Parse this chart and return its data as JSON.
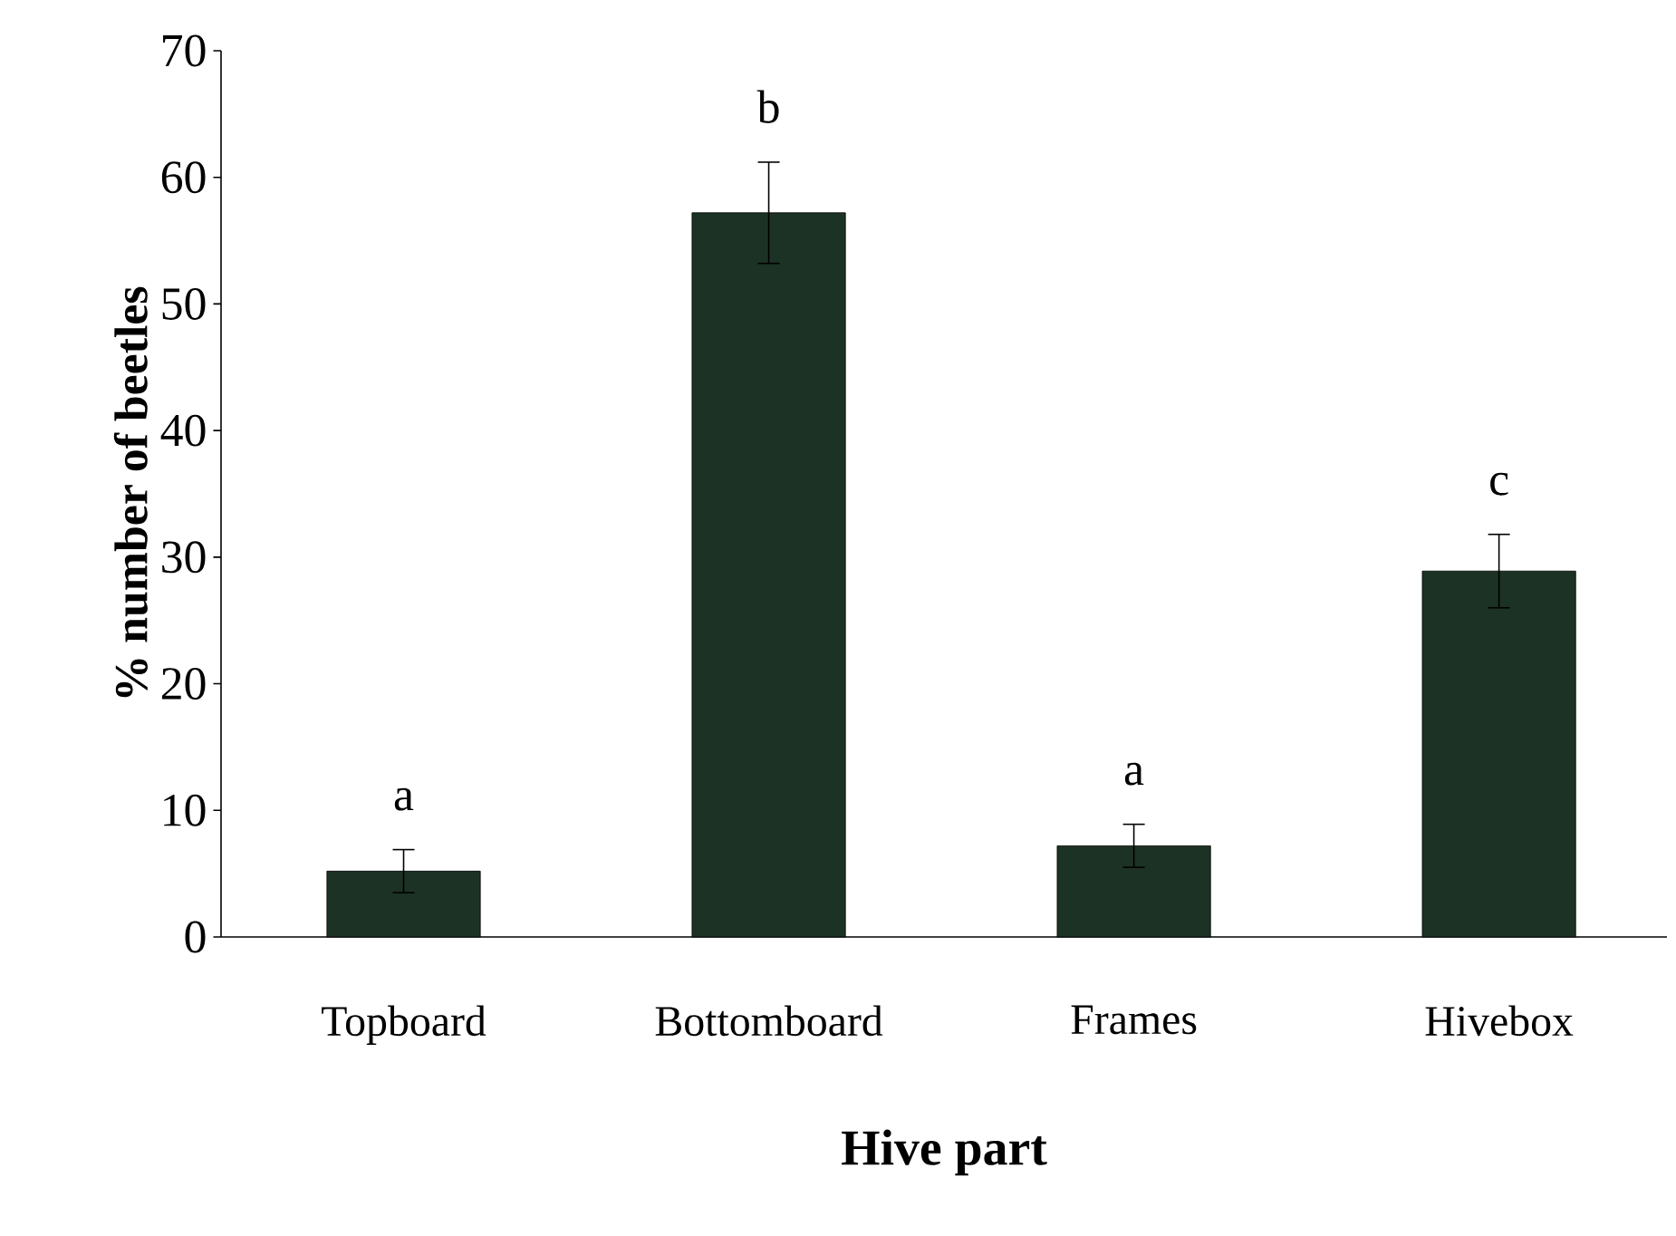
{
  "chart_data": {
    "type": "bar",
    "xlabel": "Hive part",
    "ylabel": "% number of beetles",
    "categories": [
      "Topboard",
      "Bottomboard",
      "Frames",
      "Hivebox"
    ],
    "values": [
      5.2,
      57.2,
      7.2,
      28.9
    ],
    "errors": [
      1.7,
      4.0,
      1.7,
      2.9
    ],
    "color": "#1c3224",
    "ylim": [
      0,
      70
    ],
    "yticks": [
      0,
      10,
      20,
      30,
      40,
      50,
      60,
      70
    ],
    "grid": false,
    "annotations": [
      "a",
      "b",
      "a",
      "c"
    ]
  }
}
